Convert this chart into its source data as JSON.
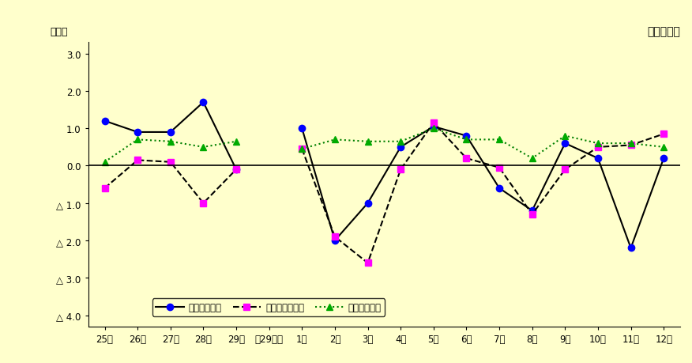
{
  "background_color": "#ffffcc",
  "title_right": "調査産業計",
  "ylabel_top": "（％）",
  "x_labels": [
    "25年",
    "26年",
    "27年",
    "28年",
    "29年",
    "（29年）",
    "1月",
    "2月",
    "3月",
    "4月",
    "5月",
    "6月",
    "7月",
    "8月",
    "9月",
    "10月",
    "11月",
    "12月"
  ],
  "y_ticks": [
    3.0,
    2.0,
    1.0,
    0.0,
    -1.0,
    -2.0,
    -3.0,
    -4.0
  ],
  "y_tick_labels": [
    "3.0",
    "2.0",
    "1.0",
    "0.0",
    "△ 1.0",
    "△ 2.0",
    "△ 3.0",
    "△ 4.0"
  ],
  "ylim": [
    -4.3,
    3.3
  ],
  "series": {
    "line1": {
      "label": "現金給与総額",
      "line_color": "#000000",
      "marker_color": "#0000ff",
      "linestyle": "solid",
      "marker": "o",
      "linewidth": 1.5,
      "markersize": 6,
      "values": [
        1.2,
        0.9,
        0.9,
        1.7,
        -0.1,
        null,
        1.0,
        -2.0,
        -1.0,
        0.5,
        1.05,
        0.8,
        -0.6,
        -1.2,
        0.6,
        0.2,
        -2.2,
        0.2
      ]
    },
    "line2": {
      "label": "総実労働時間数",
      "line_color": "#000000",
      "marker_color": "#ff00ff",
      "linestyle": "dashed",
      "marker": "s",
      "linewidth": 1.5,
      "markersize": 6,
      "values": [
        -0.6,
        0.15,
        0.1,
        -1.0,
        -0.1,
        null,
        0.45,
        -1.9,
        -2.6,
        -0.1,
        1.15,
        0.2,
        -0.05,
        -1.3,
        -0.1,
        0.5,
        0.55,
        0.85
      ]
    },
    "line3": {
      "label": "常用労働者数",
      "line_color": "#008000",
      "marker_color": "#00aa00",
      "linestyle": "dotted",
      "marker": "^",
      "linewidth": 1.5,
      "markersize": 6,
      "values": [
        0.1,
        0.7,
        0.65,
        0.5,
        0.65,
        null,
        0.45,
        0.7,
        0.65,
        0.65,
        1.0,
        0.7,
        0.7,
        0.2,
        0.8,
        0.6,
        0.6,
        0.5
      ]
    }
  }
}
